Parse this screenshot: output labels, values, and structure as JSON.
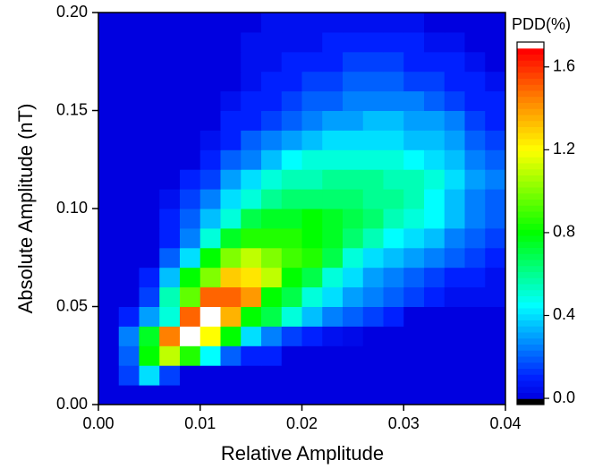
{
  "chart_data": {
    "type": "heatmap",
    "x_label": "Relative Amplitude",
    "y_label": "Absolute Amplitude (nT)",
    "colorbar_label": "PDD(%)",
    "xlim": [
      0,
      0.04
    ],
    "ylim": [
      0,
      0.2
    ],
    "xticks": [
      {
        "value": 0,
        "label": "0.00"
      },
      {
        "value": 0.01,
        "label": "0.01"
      },
      {
        "value": 0.02,
        "label": "0.02"
      },
      {
        "value": 0.03,
        "label": "0.03"
      },
      {
        "value": 0.04,
        "label": "0.04"
      }
    ],
    "yticks": [
      {
        "value": 0,
        "label": "0.00"
      },
      {
        "value": 0.05,
        "label": "0.05"
      },
      {
        "value": 0.1,
        "label": "0.10"
      },
      {
        "value": 0.15,
        "label": "0.15"
      },
      {
        "value": 0.2,
        "label": "0.20"
      }
    ],
    "zlim": [
      -0.03,
      1.72
    ],
    "zticks": [
      {
        "value": 0,
        "label": "0.0"
      },
      0.4,
      0.8,
      1.2,
      1.6
    ],
    "colorscale": [
      [
        -0.03,
        "#000000"
      ],
      [
        0,
        "#0000e0"
      ],
      [
        0.1,
        "#0020ff"
      ],
      [
        0.45,
        "#00ffff"
      ],
      [
        0.8,
        "#00ff00"
      ],
      [
        1.2,
        "#ffff00"
      ],
      [
        1.45,
        "#ff8000"
      ],
      [
        1.68,
        "#ff0000"
      ],
      [
        1.7,
        "#ffffff"
      ]
    ],
    "z": [
      [
        0,
        0,
        0,
        0,
        0,
        0,
        0,
        0,
        0,
        0,
        0,
        0,
        0,
        0,
        0,
        0,
        0,
        0,
        0,
        0
      ],
      [
        0,
        0.15,
        0.4,
        0.15,
        0,
        0,
        0,
        0,
        0,
        0,
        0,
        0,
        0,
        0,
        0,
        0,
        0,
        0,
        0,
        0
      ],
      [
        0,
        0.2,
        0.8,
        1.1,
        0.85,
        0.45,
        0.2,
        0.1,
        0.1,
        0,
        0,
        0,
        0,
        0,
        0,
        0,
        0,
        0,
        0,
        0
      ],
      [
        0,
        0.25,
        0.75,
        1.45,
        1.7,
        1.2,
        0.8,
        0.4,
        0.25,
        0.15,
        0.1,
        0.05,
        0.03,
        0,
        0,
        0,
        0,
        0,
        0,
        0
      ],
      [
        0,
        0.1,
        0.3,
        0.5,
        1.5,
        1.7,
        1.35,
        0.8,
        0.7,
        0.5,
        0.35,
        0.25,
        0.2,
        0.15,
        0.1,
        0,
        0,
        0,
        0,
        0
      ],
      [
        0,
        0,
        0.15,
        0.55,
        0.95,
        1.5,
        1.5,
        1.4,
        0.8,
        0.7,
        0.5,
        0.4,
        0.3,
        0.25,
        0.2,
        0.15,
        0.1,
        0.05,
        0.05,
        0.05
      ],
      [
        0,
        0,
        0.1,
        0.35,
        0.8,
        1.0,
        1.3,
        1.25,
        1.1,
        0.8,
        0.7,
        0.5,
        0.4,
        0.3,
        0.25,
        0.2,
        0.15,
        0.1,
        0.1,
        0.05
      ],
      [
        0,
        0,
        0,
        0.2,
        0.4,
        0.8,
        1.0,
        1.1,
        1.0,
        0.9,
        0.85,
        0.7,
        0.5,
        0.4,
        0.35,
        0.3,
        0.25,
        0.2,
        0.15,
        0.1
      ],
      [
        0,
        0,
        0,
        0.1,
        0.25,
        0.5,
        0.75,
        0.85,
        0.85,
        0.85,
        0.8,
        0.75,
        0.65,
        0.55,
        0.45,
        0.4,
        0.35,
        0.25,
        0.2,
        0.15
      ],
      [
        0,
        0,
        0,
        0.1,
        0.2,
        0.35,
        0.5,
        0.7,
        0.75,
        0.75,
        0.8,
        0.75,
        0.7,
        0.65,
        0.55,
        0.5,
        0.45,
        0.35,
        0.25,
        0.2
      ],
      [
        0,
        0,
        0,
        0.05,
        0.15,
        0.25,
        0.4,
        0.5,
        0.6,
        0.65,
        0.65,
        0.65,
        0.65,
        0.6,
        0.6,
        0.55,
        0.45,
        0.35,
        0.25,
        0.2
      ],
      [
        0,
        0,
        0,
        0,
        0.1,
        0.15,
        0.3,
        0.4,
        0.5,
        0.55,
        0.55,
        0.6,
        0.6,
        0.6,
        0.55,
        0.55,
        0.5,
        0.4,
        0.3,
        0.25
      ],
      [
        0,
        0,
        0,
        0,
        0,
        0.1,
        0.2,
        0.25,
        0.35,
        0.45,
        0.5,
        0.5,
        0.5,
        0.5,
        0.5,
        0.45,
        0.4,
        0.35,
        0.25,
        0.2
      ],
      [
        0,
        0,
        0,
        0,
        0,
        0.05,
        0.1,
        0.2,
        0.25,
        0.3,
        0.35,
        0.4,
        0.4,
        0.4,
        0.4,
        0.35,
        0.35,
        0.3,
        0.2,
        0.15
      ],
      [
        0,
        0,
        0,
        0,
        0,
        0,
        0.1,
        0.1,
        0.15,
        0.2,
        0.25,
        0.3,
        0.3,
        0.35,
        0.35,
        0.3,
        0.3,
        0.25,
        0.15,
        0.1
      ],
      [
        0,
        0,
        0,
        0,
        0,
        0,
        0.05,
        0.1,
        0.1,
        0.15,
        0.2,
        0.2,
        0.25,
        0.25,
        0.25,
        0.25,
        0.2,
        0.15,
        0.1,
        0.1
      ],
      [
        0,
        0,
        0,
        0,
        0,
        0,
        0,
        0.05,
        0.1,
        0.1,
        0.15,
        0.15,
        0.2,
        0.2,
        0.2,
        0.15,
        0.15,
        0.1,
        0.1,
        0.05
      ],
      [
        0,
        0,
        0,
        0,
        0,
        0,
        0,
        0.05,
        0.05,
        0.1,
        0.1,
        0.1,
        0.15,
        0.15,
        0.15,
        0.1,
        0.1,
        0.1,
        0.05,
        0
      ],
      [
        0,
        0,
        0,
        0,
        0,
        0,
        0,
        0.05,
        0.05,
        0.05,
        0.05,
        0.1,
        0.1,
        0.1,
        0.1,
        0.1,
        0.05,
        0.05,
        0,
        0
      ],
      [
        0,
        0,
        0,
        0,
        0,
        0,
        0,
        0,
        0.05,
        0.05,
        0.05,
        0.05,
        0.05,
        0.05,
        0.05,
        0.05,
        0,
        0,
        0,
        0
      ]
    ]
  }
}
